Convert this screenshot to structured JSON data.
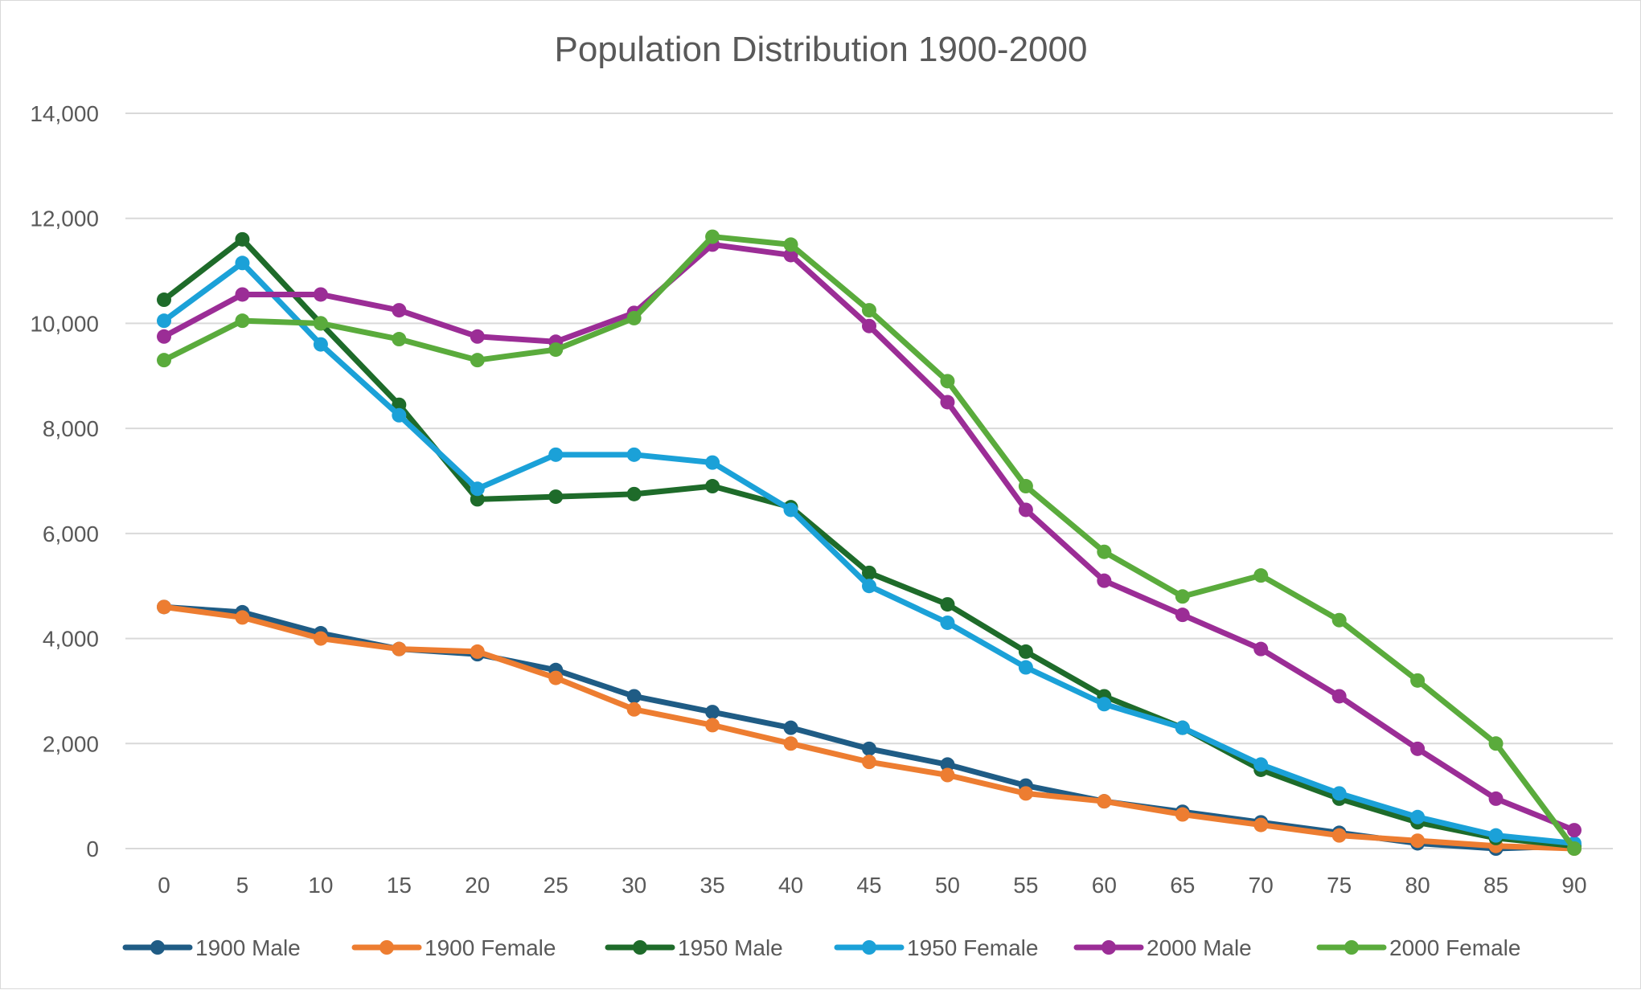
{
  "chart_data": {
    "type": "line",
    "title": "Population Distribution 1900-2000",
    "xlabel": "",
    "ylabel": "",
    "x": [
      0,
      5,
      10,
      15,
      20,
      25,
      30,
      35,
      40,
      45,
      50,
      55,
      60,
      65,
      70,
      75,
      80,
      85,
      90
    ],
    "y_ticks": [
      "0",
      "2,000",
      "4,000",
      "6,000",
      "8,000",
      "10,000",
      "12,000",
      "14,000"
    ],
    "ylim": [
      0,
      14000
    ],
    "grid": true,
    "legend_position": "bottom",
    "series": [
      {
        "name": "1900 Male",
        "color": "#1f5c85",
        "values": [
          4600,
          4500,
          4100,
          3800,
          3700,
          3400,
          2900,
          2600,
          2300,
          1900,
          1600,
          1200,
          900,
          700,
          500,
          300,
          100,
          0,
          50
        ]
      },
      {
        "name": "1900 Female",
        "color": "#ed7d31",
        "values": [
          4600,
          4400,
          4000,
          3800,
          3750,
          3250,
          2650,
          2350,
          2000,
          1650,
          1400,
          1050,
          900,
          650,
          450,
          250,
          150,
          50,
          0
        ]
      },
      {
        "name": "1950 Male",
        "color": "#1e6b2a",
        "values": [
          10450,
          11600,
          10000,
          8450,
          6650,
          6700,
          6750,
          6900,
          6500,
          5250,
          4650,
          3750,
          2900,
          2300,
          1500,
          950,
          500,
          200,
          50
        ]
      },
      {
        "name": "1950 Female",
        "color": "#1ba1d8",
        "values": [
          10050,
          11150,
          9600,
          8250,
          6850,
          7500,
          7500,
          7350,
          6450,
          5000,
          4300,
          3450,
          2750,
          2300,
          1600,
          1050,
          600,
          250,
          100
        ]
      },
      {
        "name": "2000 Male",
        "color": "#9b2d96",
        "values": [
          9750,
          10550,
          10550,
          10250,
          9750,
          9650,
          10200,
          11500,
          11300,
          9950,
          8500,
          6450,
          5100,
          4450,
          3800,
          2900,
          1900,
          950,
          350
        ]
      },
      {
        "name": "2000 Female",
        "color": "#5aab3c",
        "values": [
          9300,
          10050,
          10000,
          9700,
          9300,
          9500,
          10100,
          11650,
          11500,
          10250,
          8900,
          6900,
          5650,
          4800,
          5200,
          4350,
          3200,
          2000,
          0
        ]
      }
    ]
  }
}
